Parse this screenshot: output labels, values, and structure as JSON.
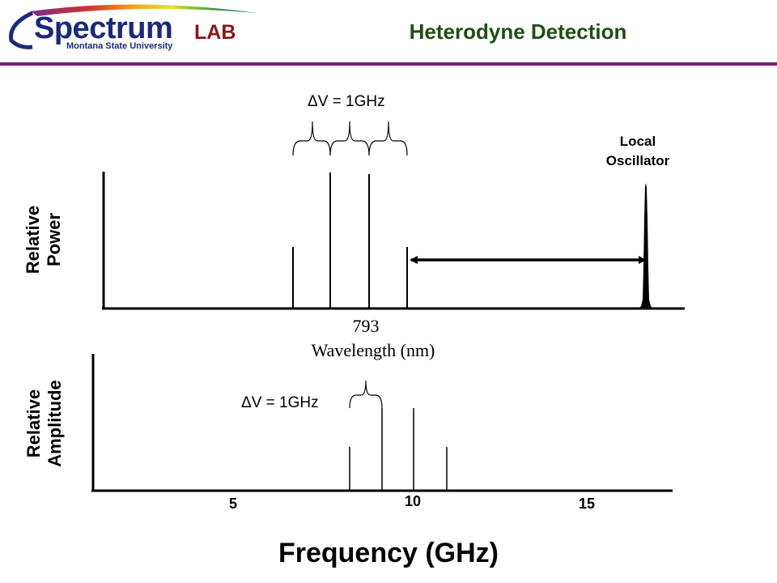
{
  "header": {
    "logo_word": "Spectrum",
    "logo_lab": "LAB",
    "logo_subtitle": "Montana State University",
    "title": "Heterodyne Detection"
  },
  "colors": {
    "title": "#1f4f14",
    "divider": "#7a1d6e",
    "logo_blue": "#1a2a7a",
    "logo_red": "#8a1616"
  },
  "top_plot": {
    "ylabel_line1": "Relative",
    "ylabel_line2": "Power",
    "spacing_label": "ΔV = 1GHz",
    "lo_label_line1": "Local",
    "lo_label_line2": "Oscillator",
    "tick_label": "793",
    "xlabel": "Wavelength (nm)"
  },
  "bottom_plot": {
    "ylabel_line1": "Relative",
    "ylabel_line2": "Amplitude",
    "spacing_label": "ΔV = 1GHz",
    "tick_labels": [
      "5",
      "10",
      "15"
    ],
    "xlabel": "Frequency (GHz)"
  },
  "chart_data": [
    {
      "type": "bar",
      "ylabel": "Relative Power",
      "xlabel": "Wavelength (nm)",
      "series": [
        {
          "name": "",
          "values": [
            0.45,
            1.0,
            1.0,
            0.45
          ]
        }
      ],
      "annotations": [
        "ΔV = 1GHz",
        "Local Oscillator",
        "793"
      ]
    },
    {
      "type": "bar",
      "ylabel": "Relative Amplitude",
      "xlabel": "Frequency (GHz)",
      "x": [
        8.5,
        9.5,
        10.5,
        11.5
      ],
      "series": [
        {
          "name": "",
          "values": [
            0.5,
            0.9,
            0.9,
            0.5
          ]
        }
      ],
      "xticks": [
        5,
        10,
        15
      ],
      "annotations": [
        "ΔV = 1GHz"
      ]
    }
  ]
}
